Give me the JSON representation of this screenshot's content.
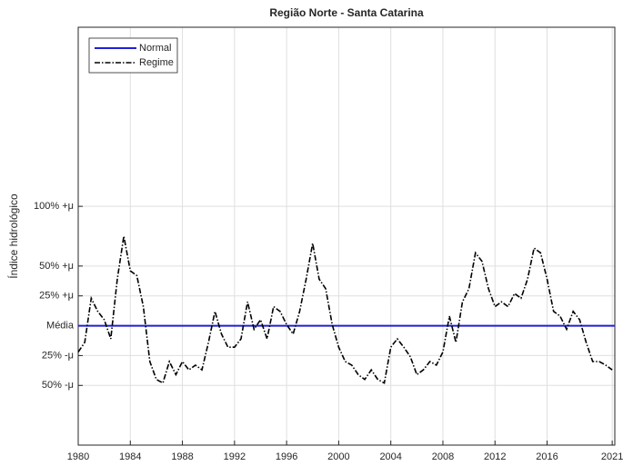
{
  "chart_data": {
    "type": "line",
    "title": "Região Norte - Santa Catarina",
    "y_label": "Índice hidrológico",
    "xlim": [
      1980,
      2021.2
    ],
    "xticks": [
      1980,
      1984,
      1988,
      1992,
      1996,
      2000,
      2004,
      2008,
      2012,
      2016,
      2021
    ],
    "ylim": [
      -100,
      250
    ],
    "yticks": [
      {
        "value": -50,
        "label": "50% -μ"
      },
      {
        "value": -25,
        "label": "25% -μ"
      },
      {
        "value": 0,
        "label": "Média"
      },
      {
        "value": 25,
        "label": "25% +μ"
      },
      {
        "value": 50,
        "label": "50% +μ"
      },
      {
        "value": 100,
        "label": "100% +μ"
      }
    ],
    "grid": true,
    "legend": "upper left",
    "series": [
      {
        "name": "Normal",
        "color": "#1f1fd6",
        "style": "solid",
        "x": [
          1980,
          2021.2
        ],
        "values": [
          0,
          0
        ]
      },
      {
        "name": "Regime",
        "color": "#000000",
        "style": "dashdot",
        "x": [
          1980,
          1980.5,
          1981,
          1981.5,
          1982,
          1982.5,
          1983,
          1983.5,
          1984,
          1984.5,
          1985,
          1985.5,
          1986,
          1986.5,
          1987,
          1987.5,
          1988,
          1988.5,
          1989,
          1989.5,
          1990,
          1990.5,
          1991,
          1991.5,
          1992,
          1992.5,
          1993,
          1993.5,
          1994,
          1994.5,
          1995,
          1995.5,
          1996,
          1996.5,
          1997,
          1997.5,
          1998,
          1998.5,
          1999,
          1999.5,
          2000,
          2000.5,
          2001,
          2001.5,
          2002,
          2002.5,
          2003,
          2003.5,
          2004,
          2004.5,
          2005,
          2005.5,
          2006,
          2006.5,
          2007,
          2007.5,
          2008,
          2008.5,
          2009,
          2009.5,
          2010,
          2010.5,
          2011,
          2011.5,
          2012,
          2012.5,
          2013,
          2013.5,
          2014,
          2014.5,
          2015,
          2015.5,
          2016,
          2016.5,
          2017,
          2017.5,
          2018,
          2018.5,
          2019,
          2019.5,
          2020,
          2020.5,
          2021
        ],
        "values": [
          -22,
          -14,
          23,
          12,
          5,
          -11,
          39,
          75,
          46,
          42,
          16,
          -30,
          -45,
          -48,
          -30,
          -41,
          -30,
          -37,
          -33,
          -37,
          -14,
          12,
          -7,
          -18,
          -18,
          -11,
          20,
          -3,
          5,
          -11,
          16,
          12,
          1,
          -7,
          12,
          39,
          69,
          39,
          31,
          1,
          -18,
          -30,
          -33,
          -41,
          -45,
          -37,
          -45,
          -48,
          -18,
          -11,
          -18,
          -26,
          -41,
          -37,
          -30,
          -33,
          -22,
          8,
          -14,
          20,
          31,
          61,
          54,
          31,
          16,
          20,
          16,
          27,
          23,
          39,
          65,
          61,
          39,
          12,
          8,
          -3,
          12,
          5,
          -14,
          -30,
          -30,
          -33,
          -37
        ]
      }
    ]
  }
}
